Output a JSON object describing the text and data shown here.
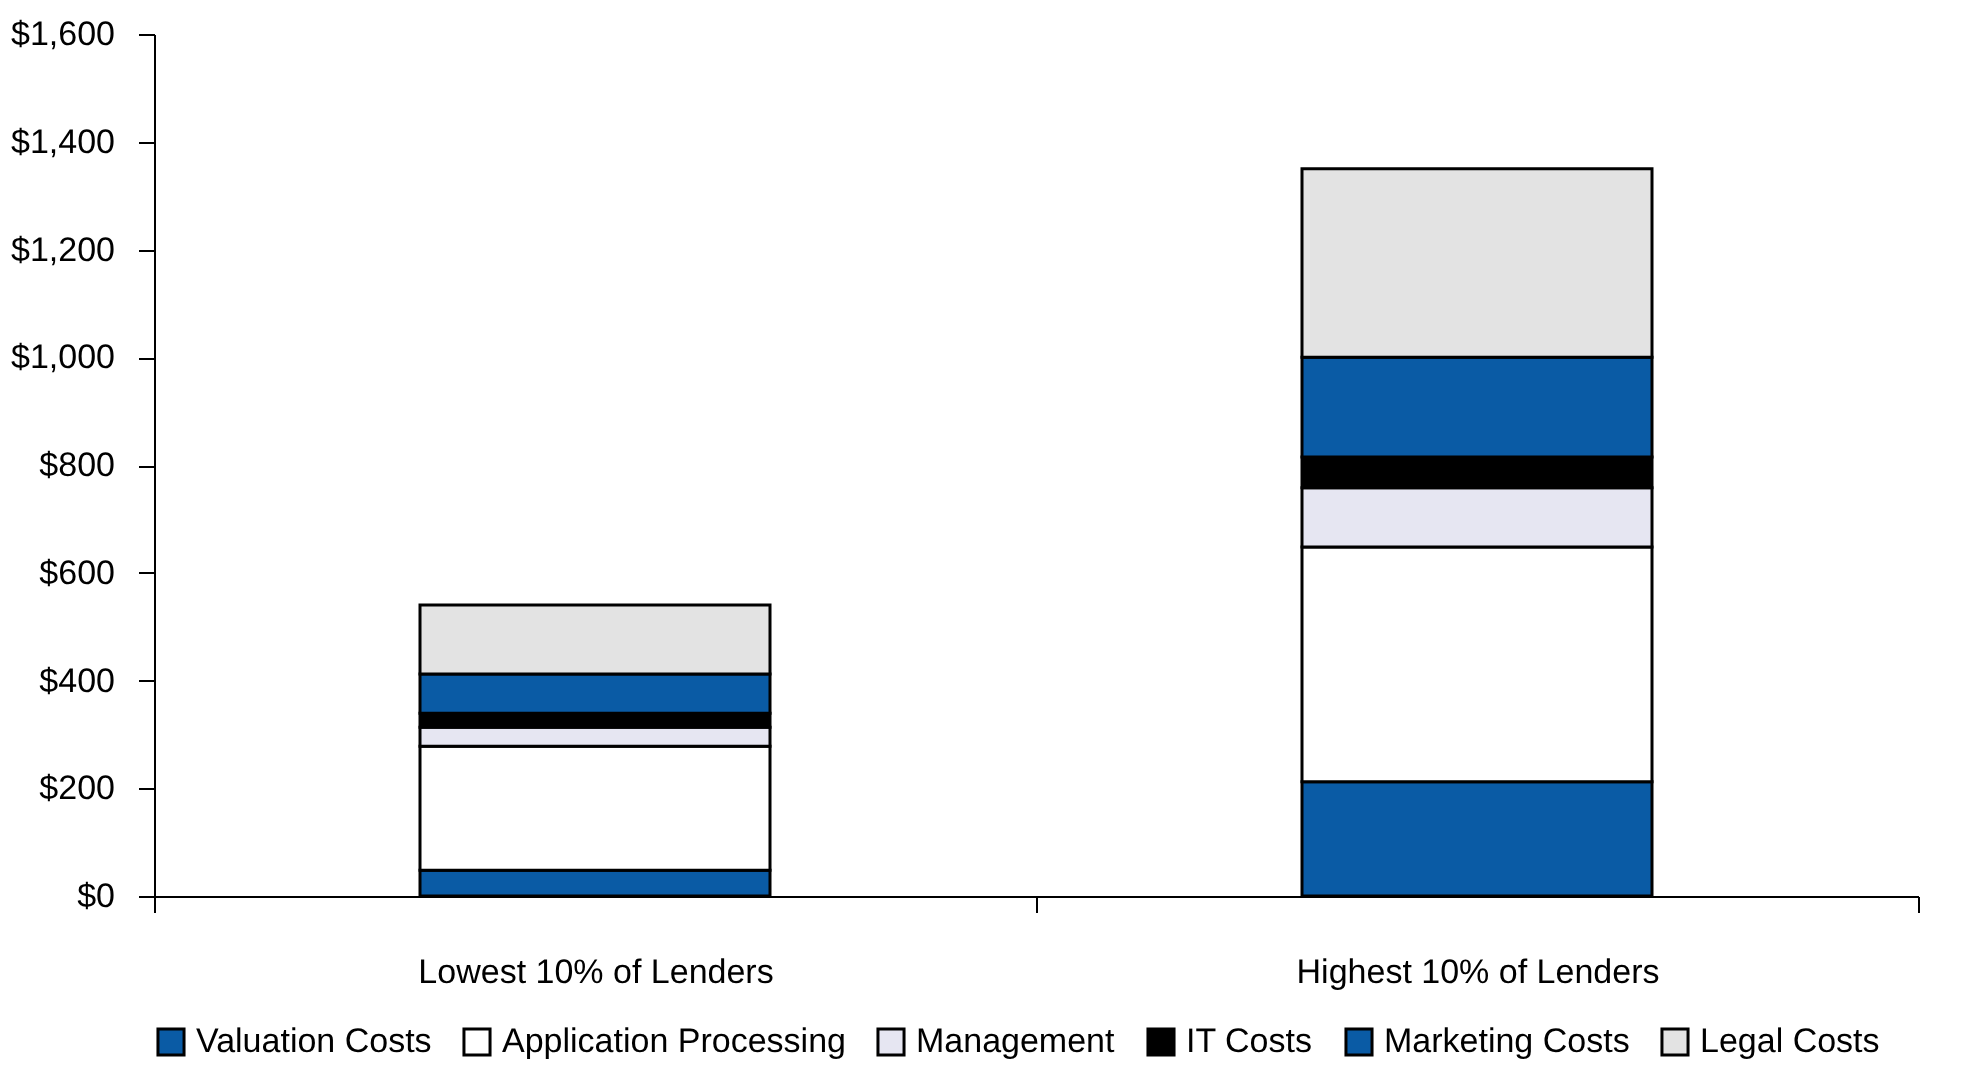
{
  "chart_data": {
    "type": "bar",
    "stacked": true,
    "categories": [
      "Lowest 10% of Lenders",
      "Highest 10% of Lenders"
    ],
    "series": [
      {
        "name": "Valuation Costs",
        "color": "#0a5ba5",
        "values": [
          48,
          212
        ]
      },
      {
        "name": "Application Processing",
        "color": "#ffffff",
        "values": [
          230,
          436
        ]
      },
      {
        "name": "Management",
        "color": "#e6e6f2",
        "values": [
          35,
          110
        ]
      },
      {
        "name": "IT Costs",
        "color": "#000000",
        "values": [
          26,
          57
        ]
      },
      {
        "name": "Marketing Costs",
        "color": "#0a5ba5",
        "values": [
          73,
          185
        ]
      },
      {
        "name": "Legal Costs",
        "color": "#e3e3e3",
        "values": [
          128,
          350
        ]
      }
    ],
    "ylim": [
      0,
      1600
    ],
    "yticks": [
      {
        "value": 0,
        "label": "$0"
      },
      {
        "value": 200,
        "label": "$200"
      },
      {
        "value": 400,
        "label": "$400"
      },
      {
        "value": 600,
        "label": "$600"
      },
      {
        "value": 800,
        "label": "$800"
      },
      {
        "value": 1000,
        "label": "$1,000"
      },
      {
        "value": 1200,
        "label": "$1,200"
      },
      {
        "value": 1400,
        "label": "$1,400"
      },
      {
        "value": 1600,
        "label": "$1,600"
      }
    ],
    "grid": false,
    "legend": "bottom"
  }
}
